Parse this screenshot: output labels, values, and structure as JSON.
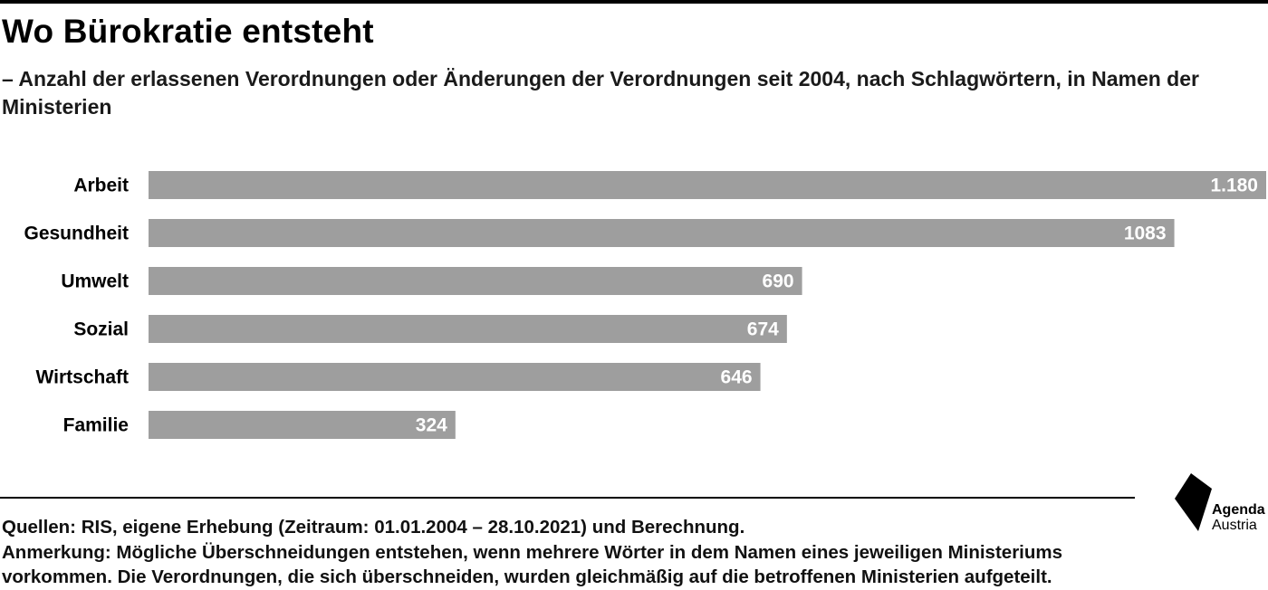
{
  "title": "Wo Bürokratie entsteht",
  "subtitle": "– Anzahl der erlassenen Verordnungen oder Änderungen der Verordnungen seit 2004, nach Schlagwörtern, in Namen der Ministerien",
  "footer": {
    "sources": "Quellen: RIS, eigene Erhebung (Zeitraum: 01.01.2004 – 28.10.2021) und Berechnung.",
    "note_line1": "Anmerkung: Mögliche Überschneidungen entstehen, wenn mehrere Wörter in dem Namen eines jeweiligen Ministeriums",
    "note_line2": "vorkommen. Die Verordnungen, die sich überschneiden, wurden gleichmäßig auf die betroffenen Ministerien aufgeteilt."
  },
  "logo": {
    "line1": "Agenda",
    "line2": "Austria",
    "icon": "agenda-austria-logo"
  },
  "colors": {
    "bar": "#9e9e9e",
    "value_text": "#ffffff",
    "rule": "#000000"
  },
  "chart_data": {
    "type": "bar",
    "orientation": "horizontal",
    "categories": [
      "Arbeit",
      "Gesundheit",
      "Umwelt",
      "Sozial",
      "Wirtschaft",
      "Familie"
    ],
    "values": [
      1180,
      1083,
      690,
      674,
      646,
      324
    ],
    "value_labels": [
      "1.180",
      "1083",
      "690",
      "674",
      "646",
      "324"
    ],
    "xlim": [
      0,
      1180
    ],
    "grid": false,
    "legend": "none"
  }
}
